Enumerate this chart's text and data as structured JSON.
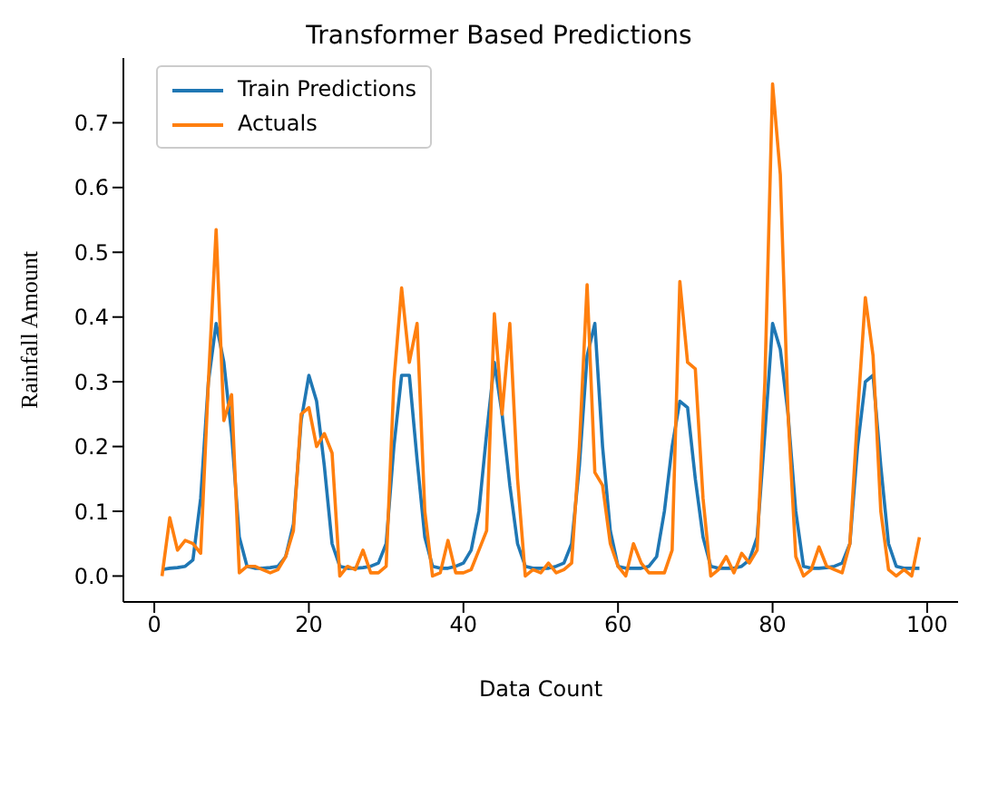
{
  "chart_data": {
    "type": "line",
    "title": "Transformer Based Predictions",
    "xlabel": "Data Count",
    "ylabel": "Rainfall Amount",
    "x": [
      1,
      2,
      3,
      4,
      5,
      6,
      7,
      8,
      9,
      10,
      11,
      12,
      13,
      14,
      15,
      16,
      17,
      18,
      19,
      20,
      21,
      22,
      23,
      24,
      25,
      26,
      27,
      28,
      29,
      30,
      31,
      32,
      33,
      34,
      35,
      36,
      37,
      38,
      39,
      40,
      41,
      42,
      43,
      44,
      45,
      46,
      47,
      48,
      49,
      50,
      51,
      52,
      53,
      54,
      55,
      56,
      57,
      58,
      59,
      60,
      61,
      62,
      63,
      64,
      65,
      66,
      67,
      68,
      69,
      70,
      71,
      72,
      73,
      74,
      75,
      76,
      77,
      78,
      79,
      80,
      81,
      82,
      83,
      84,
      85,
      86,
      87,
      88,
      89,
      90,
      91,
      92,
      93,
      94,
      95,
      96,
      97,
      98,
      99
    ],
    "series": [
      {
        "name": "Train Predictions",
        "color": "#1f77b4",
        "values": [
          0.01,
          0.012,
          0.013,
          0.015,
          0.025,
          0.12,
          0.3,
          0.39,
          0.33,
          0.22,
          0.06,
          0.015,
          0.012,
          0.012,
          0.013,
          0.015,
          0.03,
          0.08,
          0.24,
          0.31,
          0.27,
          0.17,
          0.05,
          0.015,
          0.012,
          0.012,
          0.013,
          0.015,
          0.02,
          0.05,
          0.2,
          0.31,
          0.31,
          0.18,
          0.06,
          0.015,
          0.012,
          0.012,
          0.015,
          0.02,
          0.04,
          0.1,
          0.22,
          0.33,
          0.25,
          0.14,
          0.05,
          0.015,
          0.012,
          0.012,
          0.012,
          0.015,
          0.02,
          0.05,
          0.17,
          0.34,
          0.39,
          0.2,
          0.07,
          0.015,
          0.012,
          0.012,
          0.012,
          0.015,
          0.03,
          0.1,
          0.2,
          0.27,
          0.26,
          0.15,
          0.06,
          0.015,
          0.012,
          0.012,
          0.012,
          0.015,
          0.025,
          0.06,
          0.22,
          0.39,
          0.35,
          0.25,
          0.1,
          0.015,
          0.012,
          0.012,
          0.013,
          0.015,
          0.02,
          0.05,
          0.2,
          0.3,
          0.31,
          0.17,
          0.05,
          0.015,
          0.012,
          0.012,
          0.012
        ]
      },
      {
        "name": "Actuals",
        "color": "#ff7f0e",
        "values": [
          0.0,
          0.09,
          0.04,
          0.055,
          0.05,
          0.035,
          0.3,
          0.535,
          0.24,
          0.28,
          0.005,
          0.015,
          0.015,
          0.01,
          0.005,
          0.01,
          0.03,
          0.07,
          0.25,
          0.26,
          0.2,
          0.22,
          0.19,
          0.0,
          0.015,
          0.01,
          0.04,
          0.005,
          0.005,
          0.015,
          0.3,
          0.445,
          0.33,
          0.39,
          0.1,
          0.0,
          0.005,
          0.055,
          0.005,
          0.005,
          0.01,
          0.04,
          0.07,
          0.405,
          0.25,
          0.39,
          0.15,
          0.0,
          0.01,
          0.005,
          0.02,
          0.005,
          0.01,
          0.02,
          0.2,
          0.45,
          0.16,
          0.14,
          0.05,
          0.015,
          0.0,
          0.05,
          0.02,
          0.005,
          0.005,
          0.005,
          0.04,
          0.455,
          0.33,
          0.32,
          0.12,
          0.0,
          0.01,
          0.03,
          0.005,
          0.035,
          0.02,
          0.04,
          0.3,
          0.76,
          0.62,
          0.25,
          0.03,
          0.0,
          0.01,
          0.045,
          0.015,
          0.01,
          0.005,
          0.05,
          0.25,
          0.43,
          0.34,
          0.1,
          0.01,
          0.0,
          0.01,
          0.0,
          0.06
        ]
      }
    ],
    "xlim": [
      -4,
      104
    ],
    "xticks": [
      0,
      20,
      40,
      60,
      80,
      100
    ],
    "ylim": [
      -0.04,
      0.8
    ],
    "yticks": [
      {
        "value": 0,
        "label": "0.0"
      },
      {
        "value": 0.1,
        "label": "0.1"
      },
      {
        "value": 0.2,
        "label": "0.2"
      },
      {
        "value": 0.3,
        "label": "0.3"
      },
      {
        "value": 0.4,
        "label": "0.4"
      },
      {
        "value": 0.5,
        "label": "0.5"
      },
      {
        "value": 0.6,
        "label": "0.6"
      },
      {
        "value": 0.7,
        "label": "0.7"
      }
    ],
    "legend": "top left",
    "grid": false,
    "marker": "none",
    "line_style": "solid"
  }
}
